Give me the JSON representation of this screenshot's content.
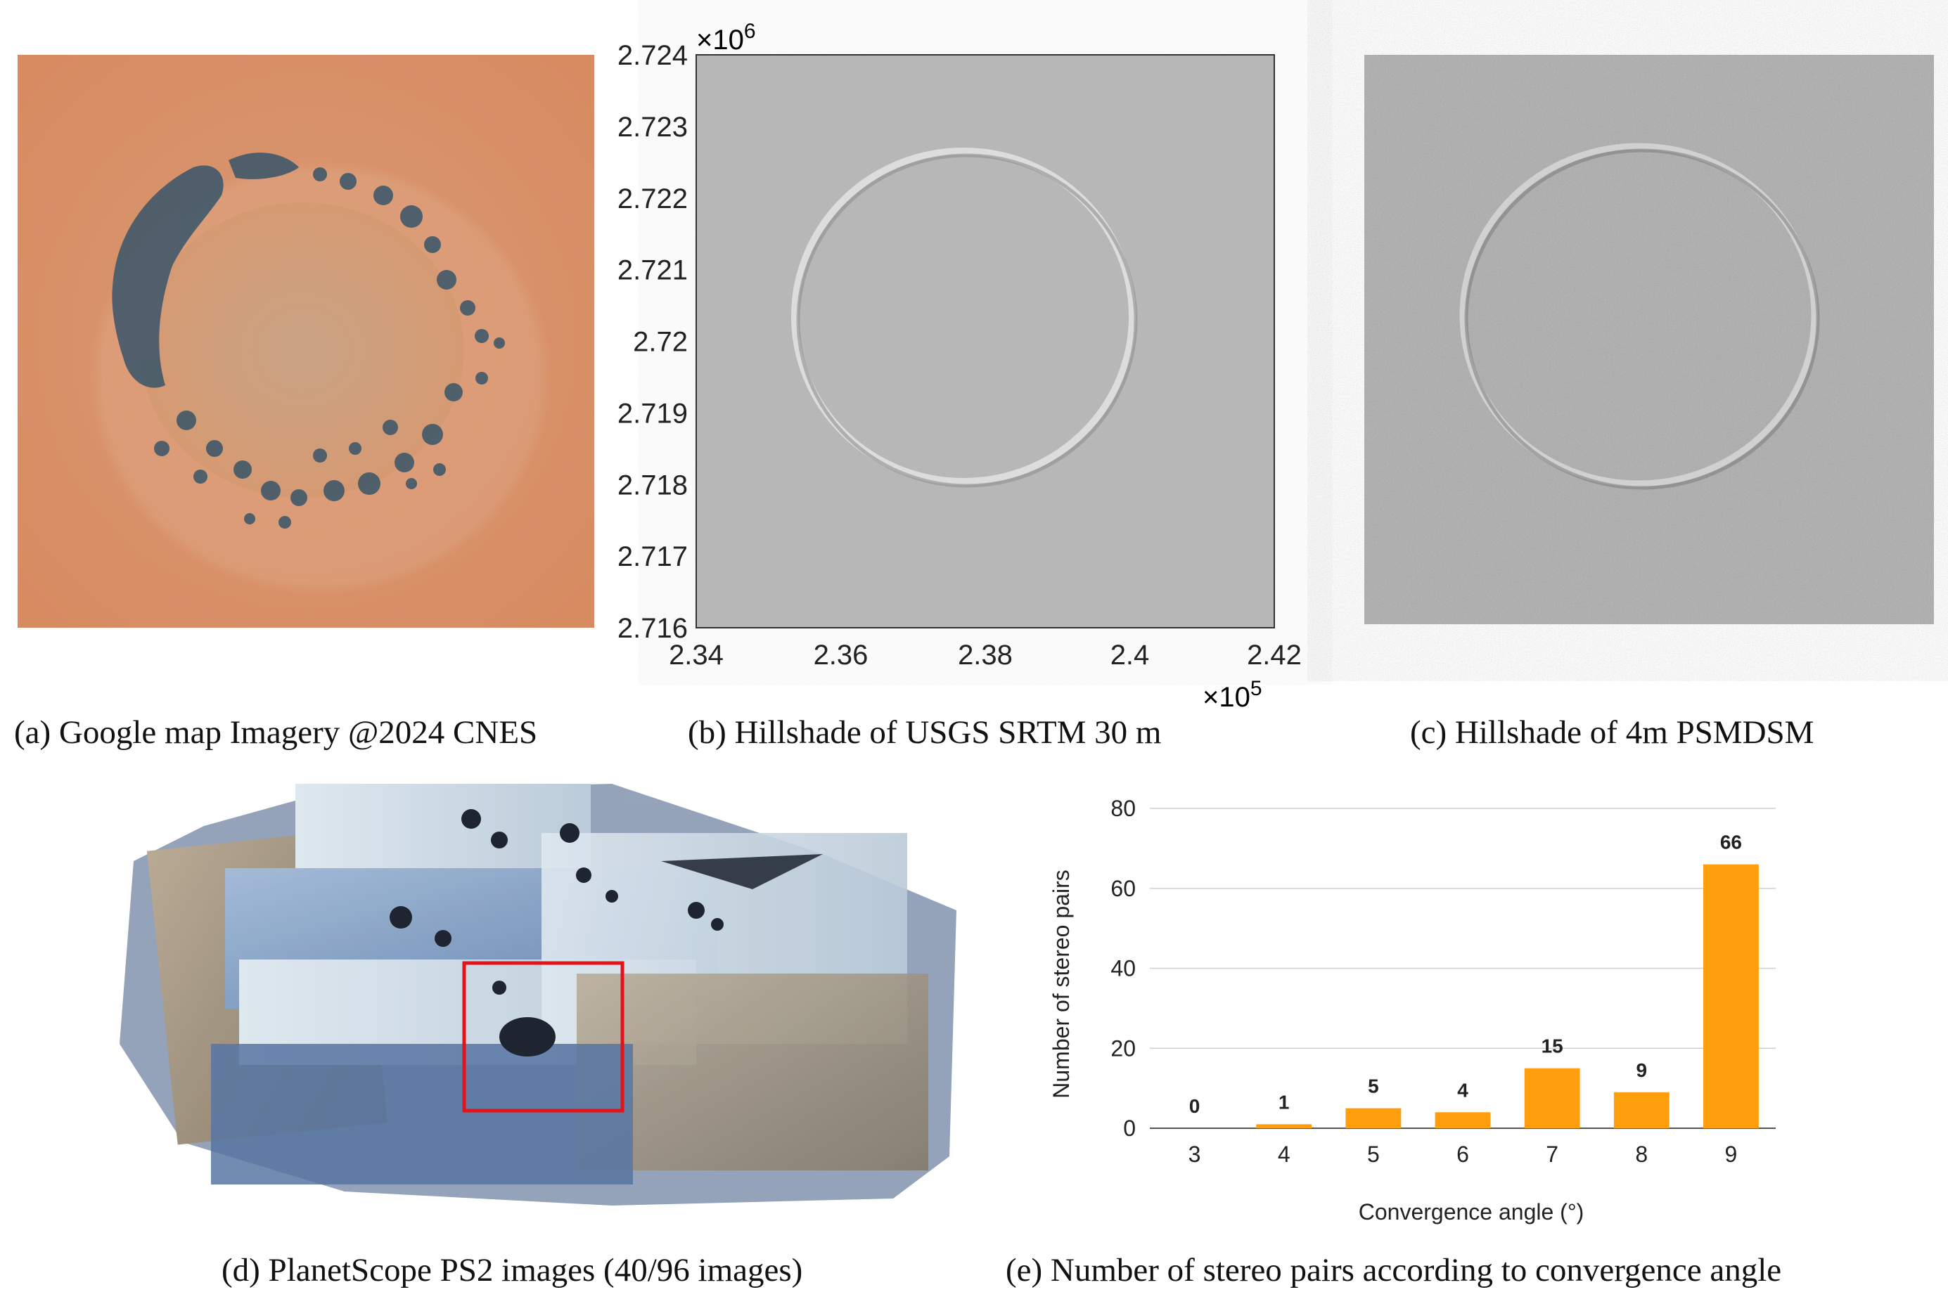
{
  "panels": {
    "a": {
      "caption": "(a) Google map Imagery @2024 CNES"
    },
    "b": {
      "caption": "(b) Hillshade of USGS SRTM 30 m",
      "y_ticks": [
        "2.724",
        "2.723",
        "2.722",
        "2.721",
        "2.72",
        "2.719",
        "2.718",
        "2.717",
        "2.716"
      ],
      "x_ticks": [
        "2.34",
        "2.36",
        "2.38",
        "2.4",
        "2.42"
      ],
      "y_exponent_base": "×10",
      "y_exponent_power": "6",
      "x_exponent_base": "×10",
      "x_exponent_power": "5"
    },
    "c": {
      "caption": "(c) Hillshade of 4m PSMDSM"
    },
    "d": {
      "caption": "(d) PlanetScope PS2 images (40/96 images)"
    },
    "e": {
      "caption": "(e) Number of stereo pairs according to convergence angle"
    }
  },
  "chart_data": {
    "type": "bar",
    "categories": [
      "3",
      "4",
      "5",
      "6",
      "7",
      "8",
      "9"
    ],
    "values": [
      0,
      1,
      5,
      4,
      15,
      9,
      66
    ],
    "data_labels": [
      "0",
      "1",
      "5",
      "4",
      "15",
      "9",
      "66"
    ],
    "xlabel": "Convergence angle (°)",
    "ylabel": "Number of stereo pairs",
    "ylim": [
      0,
      80
    ],
    "yticks": [
      "0",
      "20",
      "40",
      "60",
      "80"
    ],
    "grid": true,
    "bar_color": "#ff9e0d"
  }
}
